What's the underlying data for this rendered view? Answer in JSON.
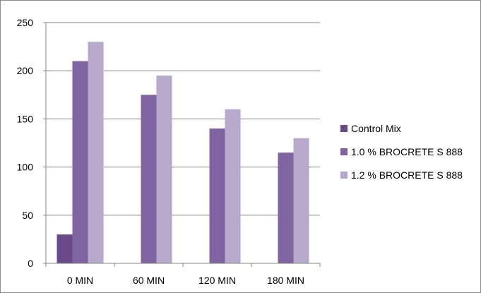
{
  "chart_data": {
    "type": "bar",
    "categories": [
      "0 MIN",
      "60 MIN",
      "120 MIN",
      "180 MIN"
    ],
    "series": [
      {
        "name": "Control Mix",
        "values": [
          30,
          0,
          0,
          0
        ],
        "color": "#6b4a8c"
      },
      {
        "name": "1.0 % BROCRETE S 888",
        "values": [
          210,
          175,
          140,
          115
        ],
        "color": "#8064a2"
      },
      {
        "name": "1.2 % BROCRETE S 888",
        "values": [
          230,
          195,
          160,
          130
        ],
        "color": "#b7a9cb"
      }
    ],
    "ylim": [
      0,
      250
    ],
    "yticks": [
      0,
      50,
      100,
      150,
      200,
      250
    ],
    "grid": true,
    "legend_position": "right",
    "title": "",
    "xlabel": "",
    "ylabel": ""
  }
}
